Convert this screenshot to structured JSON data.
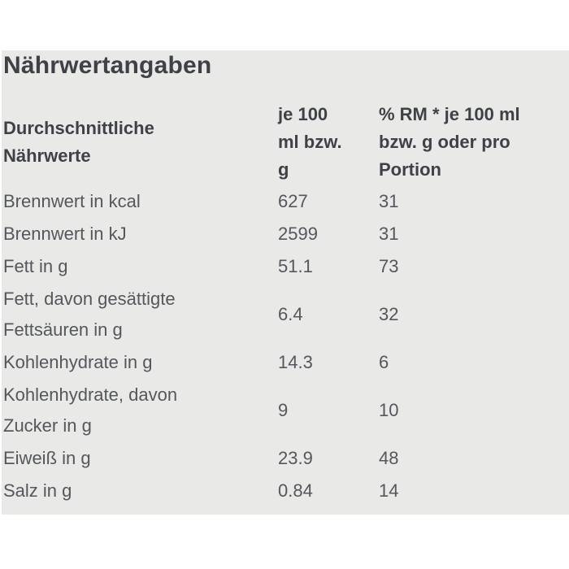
{
  "colors": {
    "page_background": "#ffffff",
    "panel_background": "#e9e9e7",
    "heading_text": "#3e4247",
    "body_text": "#54575b"
  },
  "title": "Nährwertangaben",
  "table": {
    "headers": {
      "nutrients": "Durchschnittliche\nNährwerte",
      "per_100": "je 100\nml bzw.\ng",
      "percent_rm": "% RM * je 100 ml\nbzw. g oder pro\nPortion"
    },
    "rows": [
      {
        "label": "Brennwert in kcal",
        "per_100": "627",
        "percent_rm": "31"
      },
      {
        "label": "Brennwert in kJ",
        "per_100": "2599",
        "percent_rm": "31"
      },
      {
        "label": "Fett in g",
        "per_100": "51.1",
        "percent_rm": "73"
      },
      {
        "label": "Fett, davon gesättigte\nFettsäuren in g",
        "per_100": "6.4",
        "percent_rm": "32"
      },
      {
        "label": "Kohlenhydrate in g",
        "per_100": "14.3",
        "percent_rm": "6"
      },
      {
        "label": "Kohlenhydrate, davon\nZucker in g",
        "per_100": "9",
        "percent_rm": "10"
      },
      {
        "label": "Eiweiß in g",
        "per_100": "23.9",
        "percent_rm": "48"
      },
      {
        "label": "Salz in g",
        "per_100": "0.84",
        "percent_rm": "14"
      }
    ]
  }
}
